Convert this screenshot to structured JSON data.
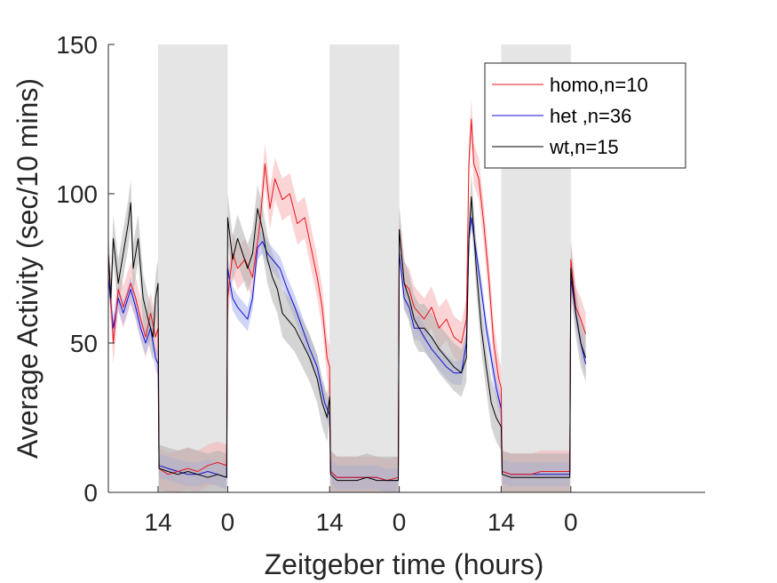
{
  "chart_data": {
    "type": "line",
    "title": "",
    "xlabel": "Zeitgeber time (hours)",
    "ylabel": "Average Activity (sec/10 mins)",
    "ylim": [
      0,
      150
    ],
    "xlim": [
      0,
      12
    ],
    "y_ticks": [
      0,
      50,
      100,
      150
    ],
    "x_ticks": [
      {
        "x": 1.0,
        "label": "14"
      },
      {
        "x": 2.4,
        "label": "0"
      },
      {
        "x": 4.45,
        "label": "14"
      },
      {
        "x": 5.85,
        "label": "0"
      },
      {
        "x": 7.9,
        "label": "14"
      },
      {
        "x": 9.3,
        "label": "0"
      }
    ],
    "dark_periods": [
      [
        1.0,
        2.4
      ],
      [
        4.45,
        5.85
      ],
      [
        7.9,
        9.3
      ]
    ],
    "shade_color": "#e5e5e5",
    "grid": false,
    "legend_position": "top-right",
    "series": [
      {
        "name": "homo,n=10",
        "color": "#e8151b",
        "band_color": "#f7b0b3",
        "band": 7,
        "points": [
          [
            0.0,
            80
          ],
          [
            0.1,
            50
          ],
          [
            0.2,
            68
          ],
          [
            0.3,
            62
          ],
          [
            0.45,
            70
          ],
          [
            0.55,
            65
          ],
          [
            0.65,
            58
          ],
          [
            0.75,
            52
          ],
          [
            0.85,
            60
          ],
          [
            0.95,
            52
          ],
          [
            1.0,
            55
          ],
          [
            1.02,
            8
          ],
          [
            1.2,
            6
          ],
          [
            1.4,
            7
          ],
          [
            1.6,
            8
          ],
          [
            1.8,
            7
          ],
          [
            2.0,
            9
          ],
          [
            2.2,
            10
          ],
          [
            2.38,
            9
          ],
          [
            2.4,
            65
          ],
          [
            2.5,
            80
          ],
          [
            2.6,
            75
          ],
          [
            2.75,
            78
          ],
          [
            2.9,
            72
          ],
          [
            3.05,
            90
          ],
          [
            3.15,
            110
          ],
          [
            3.25,
            95
          ],
          [
            3.35,
            105
          ],
          [
            3.5,
            98
          ],
          [
            3.65,
            100
          ],
          [
            3.8,
            90
          ],
          [
            3.95,
            92
          ],
          [
            4.1,
            80
          ],
          [
            4.2,
            72
          ],
          [
            4.3,
            62
          ],
          [
            4.4,
            45
          ],
          [
            4.45,
            42
          ],
          [
            4.47,
            7
          ],
          [
            4.6,
            5
          ],
          [
            4.8,
            5
          ],
          [
            5.0,
            5
          ],
          [
            5.2,
            5
          ],
          [
            5.4,
            5
          ],
          [
            5.6,
            4
          ],
          [
            5.83,
            5
          ],
          [
            5.85,
            88
          ],
          [
            5.95,
            70
          ],
          [
            6.05,
            68
          ],
          [
            6.15,
            62
          ],
          [
            6.25,
            60
          ],
          [
            6.35,
            58
          ],
          [
            6.5,
            62
          ],
          [
            6.65,
            55
          ],
          [
            6.8,
            58
          ],
          [
            6.95,
            52
          ],
          [
            7.1,
            50
          ],
          [
            7.2,
            58
          ],
          [
            7.25,
            110
          ],
          [
            7.3,
            125
          ],
          [
            7.35,
            110
          ],
          [
            7.45,
            105
          ],
          [
            7.55,
            90
          ],
          [
            7.65,
            72
          ],
          [
            7.75,
            50
          ],
          [
            7.85,
            38
          ],
          [
            7.9,
            35
          ],
          [
            7.92,
            7
          ],
          [
            8.1,
            6
          ],
          [
            8.3,
            6
          ],
          [
            8.5,
            6
          ],
          [
            8.7,
            7
          ],
          [
            8.9,
            7
          ],
          [
            9.1,
            7
          ],
          [
            9.28,
            7
          ],
          [
            9.3,
            78
          ],
          [
            9.4,
            62
          ],
          [
            9.5,
            58
          ],
          [
            9.6,
            53
          ]
        ]
      },
      {
        "name": "het ,n=36",
        "color": "#1010d0",
        "band_color": "#aab0f0",
        "band": 4,
        "points": [
          [
            0.0,
            72
          ],
          [
            0.1,
            55
          ],
          [
            0.2,
            65
          ],
          [
            0.3,
            60
          ],
          [
            0.45,
            68
          ],
          [
            0.55,
            62
          ],
          [
            0.65,
            55
          ],
          [
            0.75,
            50
          ],
          [
            0.85,
            55
          ],
          [
            0.95,
            45
          ],
          [
            1.0,
            43
          ],
          [
            1.02,
            9
          ],
          [
            1.2,
            8
          ],
          [
            1.4,
            7
          ],
          [
            1.6,
            6
          ],
          [
            1.8,
            6
          ],
          [
            2.0,
            7
          ],
          [
            2.2,
            6
          ],
          [
            2.38,
            5
          ],
          [
            2.4,
            75
          ],
          [
            2.5,
            65
          ],
          [
            2.6,
            62
          ],
          [
            2.7,
            60
          ],
          [
            2.8,
            58
          ],
          [
            2.9,
            65
          ],
          [
            3.0,
            82
          ],
          [
            3.1,
            84
          ],
          [
            3.2,
            80
          ],
          [
            3.3,
            78
          ],
          [
            3.45,
            75
          ],
          [
            3.6,
            68
          ],
          [
            3.75,
            62
          ],
          [
            3.9,
            55
          ],
          [
            4.05,
            48
          ],
          [
            4.2,
            42
          ],
          [
            4.35,
            30
          ],
          [
            4.45,
            26
          ],
          [
            4.47,
            7
          ],
          [
            4.6,
            5
          ],
          [
            4.8,
            5
          ],
          [
            5.0,
            5
          ],
          [
            5.2,
            5
          ],
          [
            5.4,
            5
          ],
          [
            5.6,
            4
          ],
          [
            5.83,
            4
          ],
          [
            5.85,
            80
          ],
          [
            5.95,
            65
          ],
          [
            6.05,
            62
          ],
          [
            6.15,
            55
          ],
          [
            6.25,
            55
          ],
          [
            6.35,
            52
          ],
          [
            6.5,
            48
          ],
          [
            6.65,
            45
          ],
          [
            6.8,
            42
          ],
          [
            6.95,
            40
          ],
          [
            7.1,
            40
          ],
          [
            7.2,
            50
          ],
          [
            7.25,
            85
          ],
          [
            7.3,
            92
          ],
          [
            7.4,
            80
          ],
          [
            7.5,
            68
          ],
          [
            7.6,
            55
          ],
          [
            7.7,
            45
          ],
          [
            7.8,
            35
          ],
          [
            7.9,
            28
          ],
          [
            7.92,
            7
          ],
          [
            8.1,
            6
          ],
          [
            8.3,
            6
          ],
          [
            8.5,
            6
          ],
          [
            8.7,
            6
          ],
          [
            8.9,
            6
          ],
          [
            9.1,
            6
          ],
          [
            9.28,
            6
          ],
          [
            9.3,
            72
          ],
          [
            9.4,
            60
          ],
          [
            9.5,
            50
          ],
          [
            9.6,
            43
          ]
        ]
      },
      {
        "name": "wt,n=15",
        "color": "#000000",
        "band_color": "#b0b0b0",
        "band": 8,
        "points": [
          [
            0.0,
            80
          ],
          [
            0.05,
            65
          ],
          [
            0.1,
            85
          ],
          [
            0.2,
            70
          ],
          [
            0.3,
            80
          ],
          [
            0.4,
            90
          ],
          [
            0.45,
            97
          ],
          [
            0.5,
            75
          ],
          [
            0.6,
            85
          ],
          [
            0.7,
            65
          ],
          [
            0.8,
            58
          ],
          [
            0.9,
            52
          ],
          [
            0.95,
            65
          ],
          [
            1.0,
            70
          ],
          [
            1.02,
            8
          ],
          [
            1.2,
            7
          ],
          [
            1.4,
            6
          ],
          [
            1.6,
            7
          ],
          [
            1.8,
            6
          ],
          [
            2.0,
            5
          ],
          [
            2.2,
            6
          ],
          [
            2.38,
            5
          ],
          [
            2.4,
            92
          ],
          [
            2.5,
            78
          ],
          [
            2.6,
            85
          ],
          [
            2.7,
            80
          ],
          [
            2.8,
            75
          ],
          [
            2.9,
            80
          ],
          [
            3.0,
            95
          ],
          [
            3.1,
            88
          ],
          [
            3.2,
            78
          ],
          [
            3.3,
            72
          ],
          [
            3.4,
            68
          ],
          [
            3.5,
            60
          ],
          [
            3.6,
            58
          ],
          [
            3.75,
            55
          ],
          [
            3.9,
            50
          ],
          [
            4.05,
            45
          ],
          [
            4.2,
            38
          ],
          [
            4.3,
            30
          ],
          [
            4.4,
            25
          ],
          [
            4.45,
            32
          ],
          [
            4.47,
            6
          ],
          [
            4.6,
            4
          ],
          [
            4.8,
            4
          ],
          [
            5.0,
            4
          ],
          [
            5.2,
            5
          ],
          [
            5.4,
            4
          ],
          [
            5.6,
            4
          ],
          [
            5.83,
            4
          ],
          [
            5.85,
            88
          ],
          [
            5.95,
            70
          ],
          [
            6.05,
            65
          ],
          [
            6.15,
            58
          ],
          [
            6.25,
            55
          ],
          [
            6.35,
            55
          ],
          [
            6.5,
            52
          ],
          [
            6.65,
            48
          ],
          [
            6.8,
            45
          ],
          [
            6.95,
            42
          ],
          [
            7.1,
            40
          ],
          [
            7.2,
            45
          ],
          [
            7.25,
            85
          ],
          [
            7.3,
            99
          ],
          [
            7.4,
            75
          ],
          [
            7.5,
            55
          ],
          [
            7.6,
            42
          ],
          [
            7.7,
            30
          ],
          [
            7.8,
            25
          ],
          [
            7.9,
            22
          ],
          [
            7.92,
            6
          ],
          [
            8.1,
            5
          ],
          [
            8.3,
            5
          ],
          [
            8.5,
            5
          ],
          [
            8.7,
            5
          ],
          [
            8.9,
            5
          ],
          [
            9.1,
            5
          ],
          [
            9.28,
            5
          ],
          [
            9.3,
            75
          ],
          [
            9.4,
            60
          ],
          [
            9.5,
            50
          ],
          [
            9.6,
            45
          ]
        ]
      }
    ]
  }
}
